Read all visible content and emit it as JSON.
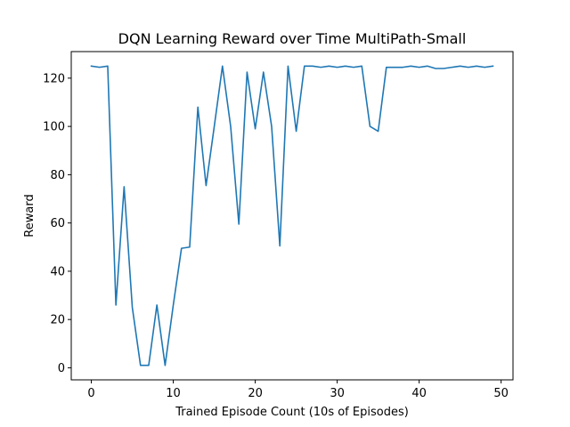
{
  "chart_data": {
    "type": "line",
    "title": "DQN Learning Reward over Time MultiPath-Small",
    "xlabel": "Trained Episode Count (10s of Episodes)",
    "ylabel": "Reward",
    "xlim": [
      -2.45,
      51.45
    ],
    "ylim": [
      -5,
      131
    ],
    "xticks": [
      0,
      10,
      20,
      30,
      40,
      50
    ],
    "yticks": [
      0,
      20,
      40,
      60,
      80,
      100,
      120
    ],
    "grid": false,
    "series": [
      {
        "color": "#1f77b4",
        "x": [
          0,
          1,
          2,
          3,
          4,
          5,
          6,
          7,
          8,
          9,
          10,
          11,
          12,
          13,
          14,
          15,
          16,
          17,
          18,
          19,
          20,
          21,
          22,
          23,
          24,
          25,
          26,
          27,
          28,
          29,
          30,
          31,
          32,
          33,
          34,
          35,
          36,
          37,
          38,
          39,
          40,
          41,
          42,
          43,
          44,
          45,
          46,
          47,
          48,
          49
        ],
        "y": [
          125,
          124.5,
          125,
          26,
          75,
          25,
          1,
          1,
          26,
          1,
          26,
          49.5,
          50,
          108,
          75.5,
          100,
          125,
          100,
          59.5,
          122.5,
          99,
          122.5,
          100,
          50.5,
          125,
          98,
          125,
          125,
          124.5,
          125,
          124.5,
          125,
          124.5,
          125,
          100,
          98,
          124.5,
          124.5,
          124.5,
          125,
          124.5,
          125,
          124,
          124,
          124.5,
          125,
          124.5,
          125,
          124.5,
          125
        ]
      }
    ]
  }
}
